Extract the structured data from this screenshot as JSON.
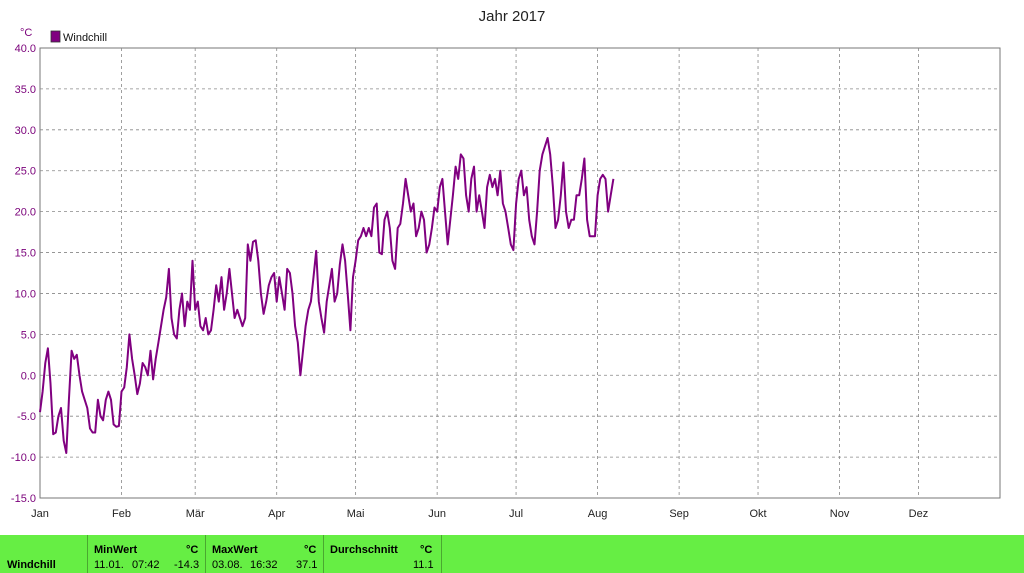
{
  "chart_data": {
    "type": "line",
    "title": "Jahr 2017",
    "unit": "°C",
    "ylim": [
      -15,
      40
    ],
    "y_ticks": [
      "40.0",
      "35.0",
      "30.0",
      "25.0",
      "20.0",
      "15.0",
      "10.0",
      "5.0",
      "0.0",
      "-5.0",
      "-10.0",
      "-15.0"
    ],
    "x_ticks": [
      "Jan",
      "Feb",
      "Mär",
      "Apr",
      "Mai",
      "Jun",
      "Jul",
      "Aug",
      "Sep",
      "Okt",
      "Nov",
      "Dez"
    ],
    "grid": true,
    "legend_position": "top-left",
    "series": [
      {
        "name": "Windchill",
        "color": "#800080",
        "x_unit": "day of year",
        "points": [
          [
            1,
            -4.5
          ],
          [
            2,
            -2
          ],
          [
            3,
            1.5
          ],
          [
            4,
            3.3
          ],
          [
            5,
            -1
          ],
          [
            6,
            -7.2
          ],
          [
            7,
            -7
          ],
          [
            8,
            -5
          ],
          [
            9,
            -4
          ],
          [
            10,
            -8
          ],
          [
            11,
            -9.5
          ],
          [
            12,
            -3
          ],
          [
            13,
            3
          ],
          [
            14,
            2
          ],
          [
            15,
            2.5
          ],
          [
            16,
            0
          ],
          [
            17,
            -2
          ],
          [
            18,
            -3
          ],
          [
            19,
            -4
          ],
          [
            20,
            -6.5
          ],
          [
            21,
            -7
          ],
          [
            22,
            -7
          ],
          [
            23,
            -3
          ],
          [
            24,
            -5
          ],
          [
            25,
            -5.5
          ],
          [
            26,
            -3
          ],
          [
            27,
            -2
          ],
          [
            28,
            -3
          ],
          [
            29,
            -6
          ],
          [
            30,
            -6.3
          ],
          [
            31,
            -6.2
          ],
          [
            32,
            -2
          ],
          [
            33,
            -1.5
          ],
          [
            34,
            1
          ],
          [
            35,
            5
          ],
          [
            36,
            2
          ],
          [
            37,
            0
          ],
          [
            38,
            -2.3
          ],
          [
            39,
            -1
          ],
          [
            40,
            1.5
          ],
          [
            41,
            1
          ],
          [
            42,
            0
          ],
          [
            43,
            3
          ],
          [
            44,
            -0.5
          ],
          [
            45,
            2
          ],
          [
            46,
            4
          ],
          [
            47,
            6
          ],
          [
            48,
            8
          ],
          [
            49,
            9.5
          ],
          [
            50,
            13
          ],
          [
            51,
            7
          ],
          [
            52,
            5
          ],
          [
            53,
            4.5
          ],
          [
            54,
            8
          ],
          [
            55,
            10
          ],
          [
            56,
            6
          ],
          [
            57,
            9
          ],
          [
            58,
            8
          ],
          [
            59,
            14
          ],
          [
            60,
            8
          ],
          [
            61,
            9
          ],
          [
            62,
            6
          ],
          [
            63,
            5.5
          ],
          [
            64,
            7
          ],
          [
            65,
            5
          ],
          [
            66,
            5.5
          ],
          [
            67,
            8
          ],
          [
            68,
            11
          ],
          [
            69,
            9
          ],
          [
            70,
            12
          ],
          [
            71,
            8
          ],
          [
            72,
            10
          ],
          [
            73,
            13
          ],
          [
            74,
            10
          ],
          [
            75,
            7
          ],
          [
            76,
            8
          ],
          [
            77,
            7
          ],
          [
            78,
            6
          ],
          [
            79,
            7
          ],
          [
            80,
            16
          ],
          [
            81,
            14
          ],
          [
            82,
            16.3
          ],
          [
            83,
            16.5
          ],
          [
            84,
            14
          ],
          [
            85,
            10
          ],
          [
            86,
            7.5
          ],
          [
            87,
            9
          ],
          [
            88,
            11
          ],
          [
            89,
            12
          ],
          [
            90,
            12.5
          ],
          [
            91,
            9
          ],
          [
            92,
            12
          ],
          [
            93,
            10
          ],
          [
            94,
            8
          ],
          [
            95,
            13
          ],
          [
            96,
            12.5
          ],
          [
            97,
            10
          ],
          [
            98,
            6
          ],
          [
            99,
            4
          ],
          [
            100,
            0
          ],
          [
            101,
            3
          ],
          [
            102,
            6
          ],
          [
            103,
            8
          ],
          [
            104,
            9
          ],
          [
            105,
            12
          ],
          [
            106,
            15.2
          ],
          [
            107,
            9
          ],
          [
            108,
            7
          ],
          [
            109,
            5.2
          ],
          [
            110,
            9
          ],
          [
            111,
            11
          ],
          [
            112,
            13
          ],
          [
            113,
            9
          ],
          [
            114,
            10
          ],
          [
            115,
            13.5
          ],
          [
            116,
            16
          ],
          [
            117,
            14
          ],
          [
            118,
            10
          ],
          [
            119,
            5.5
          ],
          [
            120,
            12
          ],
          [
            121,
            14
          ],
          [
            122,
            16.5
          ],
          [
            123,
            17
          ],
          [
            124,
            18
          ],
          [
            125,
            17
          ],
          [
            126,
            18
          ],
          [
            127,
            17
          ],
          [
            128,
            20.5
          ],
          [
            129,
            21
          ],
          [
            130,
            15
          ],
          [
            131,
            14.8
          ],
          [
            132,
            19
          ],
          [
            133,
            20
          ],
          [
            134,
            18
          ],
          [
            135,
            14
          ],
          [
            136,
            13
          ],
          [
            137,
            18
          ],
          [
            138,
            18.5
          ],
          [
            139,
            21
          ],
          [
            140,
            24
          ],
          [
            141,
            22
          ],
          [
            142,
            20
          ],
          [
            143,
            21
          ],
          [
            144,
            17
          ],
          [
            145,
            18
          ],
          [
            146,
            20
          ],
          [
            147,
            19
          ],
          [
            148,
            15
          ],
          [
            149,
            16
          ],
          [
            150,
            18
          ],
          [
            151,
            20.5
          ],
          [
            152,
            20
          ],
          [
            153,
            23
          ],
          [
            154,
            24
          ],
          [
            155,
            20
          ],
          [
            156,
            16
          ],
          [
            157,
            19
          ],
          [
            158,
            22
          ],
          [
            159,
            25.5
          ],
          [
            160,
            24
          ],
          [
            161,
            27
          ],
          [
            162,
            26.5
          ],
          [
            163,
            22
          ],
          [
            164,
            20
          ],
          [
            165,
            24
          ],
          [
            166,
            25.5
          ],
          [
            167,
            20
          ],
          [
            168,
            22
          ],
          [
            169,
            20
          ],
          [
            170,
            18
          ],
          [
            171,
            23
          ],
          [
            172,
            24.5
          ],
          [
            173,
            23
          ],
          [
            174,
            24
          ],
          [
            175,
            22
          ],
          [
            176,
            25
          ],
          [
            177,
            21
          ],
          [
            178,
            20
          ],
          [
            179,
            18
          ],
          [
            180,
            16
          ],
          [
            181,
            15.3
          ],
          [
            182,
            21
          ],
          [
            183,
            24
          ],
          [
            184,
            25
          ],
          [
            185,
            22
          ],
          [
            186,
            23
          ],
          [
            187,
            19
          ],
          [
            188,
            17
          ],
          [
            189,
            16
          ],
          [
            190,
            20
          ],
          [
            191,
            25
          ],
          [
            192,
            27
          ],
          [
            193,
            28
          ],
          [
            194,
            29
          ],
          [
            195,
            27
          ],
          [
            196,
            23
          ],
          [
            197,
            18
          ],
          [
            198,
            19
          ],
          [
            199,
            22
          ],
          [
            200,
            26
          ],
          [
            201,
            20
          ],
          [
            202,
            18
          ],
          [
            203,
            19
          ],
          [
            204,
            19
          ],
          [
            205,
            22
          ],
          [
            206,
            22
          ],
          [
            207,
            24
          ],
          [
            208,
            26.5
          ],
          [
            209,
            19
          ],
          [
            210,
            17
          ],
          [
            211,
            17
          ],
          [
            212,
            17
          ],
          [
            213,
            22
          ],
          [
            214,
            24
          ],
          [
            215,
            24.5
          ],
          [
            216,
            24
          ],
          [
            217,
            20
          ],
          [
            218,
            22
          ],
          [
            219,
            24
          ]
        ]
      }
    ]
  },
  "stats": {
    "row_label": "Windchill",
    "min": {
      "header": "MinWert",
      "unit": "°C",
      "date": "11.01.",
      "time": "07:42",
      "value": "-14.3"
    },
    "max": {
      "header": "MaxWert",
      "unit": "°C",
      "date": "03.08.",
      "time": "16:32",
      "value": "37.1"
    },
    "avg": {
      "header": "Durchschnitt",
      "unit": "°C",
      "value": "11.1"
    }
  }
}
